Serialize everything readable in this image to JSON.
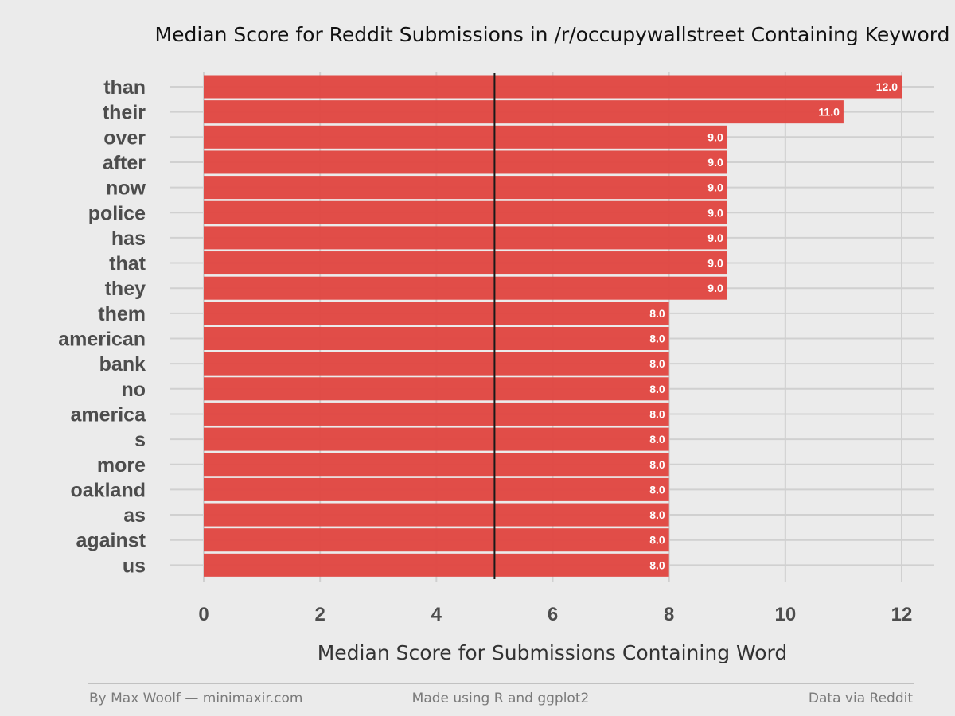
{
  "chart_data": {
    "type": "bar",
    "orientation": "horizontal",
    "title": "Median Score for Reddit Submissions in /r/occupywallstreet Containing Keyword",
    "xlabel": "Median Score for Submissions Containing Word",
    "ylabel": "",
    "categories": [
      "than",
      "their",
      "over",
      "after",
      "now",
      "police",
      "has",
      "that",
      "they",
      "them",
      "american",
      "bank",
      "no",
      "america",
      "s",
      "more",
      "oakland",
      "as",
      "against",
      "us"
    ],
    "values": [
      12,
      11,
      9,
      9,
      9,
      9,
      9,
      9,
      9,
      8,
      8,
      8,
      8,
      8,
      8,
      8,
      8,
      8,
      8,
      8
    ],
    "value_labels": [
      "12.0",
      "11.0",
      "9.0",
      "9.0",
      "9.0",
      "9.0",
      "9.0",
      "9.0",
      "9.0",
      "8.0",
      "8.0",
      "8.0",
      "8.0",
      "8.0",
      "8.0",
      "8.0",
      "8.0",
      "8.0",
      "8.0",
      "8.0"
    ],
    "xlim": [
      0,
      12
    ],
    "xticks": [
      0,
      2,
      4,
      6,
      8,
      10,
      12
    ],
    "xtick_labels": [
      "0",
      "2",
      "4",
      "6",
      "8",
      "10",
      "12"
    ],
    "reference_line": 5,
    "grid": true,
    "bar_color": "#e0443f",
    "reference_line_color": "#1a1a1a"
  },
  "footer": {
    "left": "By Max Woolf — minimaxir.com",
    "center": "Made using R and ggplot2",
    "right": "Data via Reddit"
  }
}
